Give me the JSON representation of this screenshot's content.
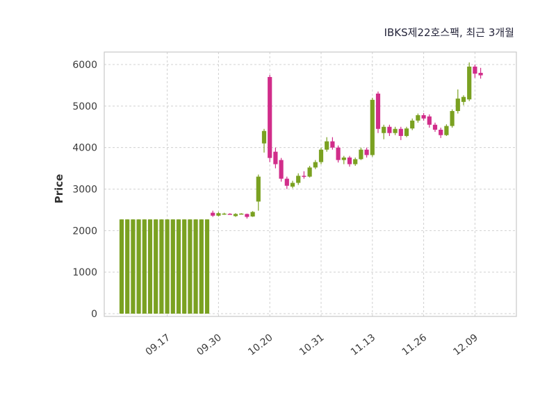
{
  "chart_data": {
    "type": "candlestick",
    "title": "IBKS제22호스팩, 최근 3개월",
    "ylabel": "Price",
    "xlabel": "",
    "ylim": [
      0,
      6000
    ],
    "yticks": [
      0,
      1000,
      2000,
      3000,
      4000,
      5000,
      6000
    ],
    "xticks": [
      {
        "index": 8,
        "label": "09.17"
      },
      {
        "index": 17,
        "label": "09.30"
      },
      {
        "index": 26,
        "label": "10.20"
      },
      {
        "index": 35,
        "label": "10.31"
      },
      {
        "index": 44,
        "label": "11.13"
      },
      {
        "index": 53,
        "label": "11.26"
      },
      {
        "index": 62,
        "label": "12.09"
      }
    ],
    "grid": "dashed",
    "legend": "none",
    "colors": {
      "up": "#7aa121",
      "down": "#d12d8a",
      "grid": "#d0d0d0",
      "border": "#c8c8c8",
      "background": "#ffffff",
      "text": "#3a3a3a"
    },
    "candle_order": [
      "open",
      "high",
      "low",
      "close"
    ],
    "candles": [
      [
        0,
        2270,
        0,
        2270
      ],
      [
        0,
        2270,
        0,
        2270
      ],
      [
        0,
        2270,
        0,
        2270
      ],
      [
        0,
        2270,
        0,
        2270
      ],
      [
        0,
        2270,
        0,
        2270
      ],
      [
        0,
        2270,
        0,
        2270
      ],
      [
        0,
        2270,
        0,
        2270
      ],
      [
        0,
        2270,
        0,
        2270
      ],
      [
        0,
        2270,
        0,
        2270
      ],
      [
        0,
        2270,
        0,
        2270
      ],
      [
        0,
        2270,
        0,
        2270
      ],
      [
        0,
        2270,
        0,
        2270
      ],
      [
        0,
        2270,
        0,
        2270
      ],
      [
        0,
        2270,
        0,
        2270
      ],
      [
        0,
        2270,
        0,
        2270
      ],
      [
        0,
        2270,
        0,
        2270
      ],
      [
        2430,
        2480,
        2330,
        2360
      ],
      [
        2360,
        2450,
        2340,
        2420
      ],
      [
        2400,
        2430,
        2380,
        2410
      ],
      [
        2405,
        2420,
        2385,
        2395
      ],
      [
        2350,
        2420,
        2330,
        2400
      ],
      [
        2400,
        2420,
        2390,
        2410
      ],
      [
        2400,
        2410,
        2290,
        2330
      ],
      [
        2340,
        2470,
        2330,
        2450
      ],
      [
        2700,
        3350,
        2480,
        3300
      ],
      [
        4100,
        4450,
        3880,
        4400
      ],
      [
        5700,
        5750,
        3650,
        3750
      ],
      [
        3900,
        4000,
        3500,
        3600
      ],
      [
        3700,
        3750,
        3180,
        3250
      ],
      [
        3250,
        3300,
        3000,
        3080
      ],
      [
        3060,
        3200,
        3020,
        3150
      ],
      [
        3150,
        3380,
        3100,
        3320
      ],
      [
        3320,
        3430,
        3250,
        3300
      ],
      [
        3300,
        3560,
        3280,
        3520
      ],
      [
        3520,
        3700,
        3480,
        3650
      ],
      [
        3650,
        4000,
        3600,
        3950
      ],
      [
        3950,
        4250,
        3900,
        4150
      ],
      [
        4150,
        4250,
        3950,
        4000
      ],
      [
        4000,
        4050,
        3640,
        3700
      ],
      [
        3700,
        3800,
        3600,
        3760
      ],
      [
        3760,
        3800,
        3540,
        3600
      ],
      [
        3600,
        3760,
        3560,
        3720
      ],
      [
        3720,
        4000,
        3700,
        3950
      ],
      [
        3950,
        4000,
        3760,
        3820
      ],
      [
        3820,
        5200,
        3780,
        5150
      ],
      [
        5300,
        5350,
        4350,
        4450
      ],
      [
        4350,
        4550,
        4200,
        4500
      ],
      [
        4500,
        4550,
        4280,
        4350
      ],
      [
        4350,
        4500,
        4300,
        4450
      ],
      [
        4450,
        4500,
        4180,
        4280
      ],
      [
        4280,
        4500,
        4250,
        4460
      ],
      [
        4460,
        4700,
        4420,
        4650
      ],
      [
        4650,
        4820,
        4600,
        4780
      ],
      [
        4780,
        4830,
        4650,
        4700
      ],
      [
        4750,
        4800,
        4480,
        4550
      ],
      [
        4550,
        4600,
        4380,
        4430
      ],
      [
        4430,
        4480,
        4230,
        4300
      ],
      [
        4300,
        4560,
        4280,
        4520
      ],
      [
        4520,
        4920,
        4480,
        4880
      ],
      [
        4880,
        5400,
        4820,
        5180
      ],
      [
        5100,
        5260,
        5020,
        5220
      ],
      [
        5160,
        6050,
        5120,
        5950
      ],
      [
        5950,
        6000,
        5680,
        5780
      ],
      [
        5800,
        5920,
        5660,
        5740
      ]
    ]
  }
}
